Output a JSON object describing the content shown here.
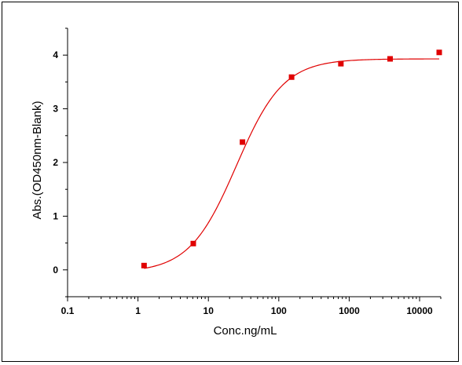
{
  "chart_data": {
    "type": "scatter",
    "xlabel": "Conc.ng/mL",
    "ylabel": "Abs.(OD450nm-Blank)",
    "x_scale": "log",
    "xlim": [
      0.1,
      20000
    ],
    "ylim": [
      -0.5,
      4.5
    ],
    "x_ticks": [
      0.1,
      1,
      10,
      100,
      1000,
      10000
    ],
    "x_tick_labels": [
      "0.1",
      "1",
      "10",
      "100",
      "1000",
      "10000"
    ],
    "y_ticks": [
      0,
      1,
      2,
      3,
      4
    ],
    "y_tick_labels": [
      "0",
      "1",
      "2",
      "3",
      "4"
    ],
    "grid": false,
    "series": [
      {
        "kind": "points",
        "x": [
          1.22,
          6.1,
          30.5,
          152,
          762,
          3810,
          19000
        ],
        "y": [
          0.08,
          0.49,
          2.38,
          3.59,
          3.84,
          3.93,
          4.05
        ],
        "color": "#e00000",
        "marker": "square"
      },
      {
        "kind": "fit",
        "model": "4PL",
        "params": {
          "bottom": -0.05,
          "top": 3.93,
          "ec50": 25,
          "hill": 1.3
        },
        "x_range": [
          1.22,
          19000
        ],
        "color": "#e00000"
      }
    ]
  }
}
